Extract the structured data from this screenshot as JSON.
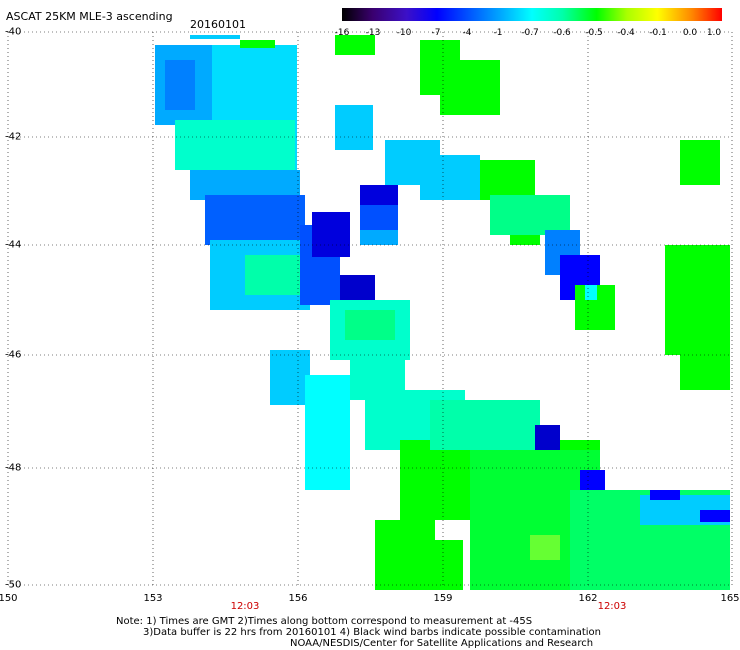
{
  "header": {
    "title": "ASCAT 25KM MLE-3 ascending",
    "date": "20160101"
  },
  "colorbar": {
    "labels": [
      "-16",
      "-13",
      "-10",
      "-7",
      "-4",
      "-1",
      "-0.7",
      "-0.6",
      "-0.5",
      "-0.4",
      "-0.1",
      "0.0",
      "1.0"
    ],
    "colors": [
      "#000000",
      "#3a006e",
      "#3c10c8",
      "#0000ff",
      "#0050ff",
      "#00aaff",
      "#00ffff",
      "#00ffaa",
      "#00ff00",
      "#aaff00",
      "#ffff00",
      "#ff8800",
      "#ff0000"
    ]
  },
  "axes": {
    "y_labels": [
      "-40",
      "-42",
      "-44",
      "-46",
      "-48",
      "-50"
    ],
    "x_labels": [
      "150",
      "153",
      "156",
      "159",
      "162",
      "165"
    ],
    "time_labels": [
      "12:03",
      "12:03"
    ]
  },
  "notes": {
    "line1": "Note: 1) Times are GMT 2)Times along bottom correspond to measurement at -45S",
    "line2": "3)Data buffer is 22 hrs from 20160101 4) Black wind barbs indicate possible contamination",
    "line3": "NOAA/NESDIS/Center for Satellite Applications and Research"
  }
}
